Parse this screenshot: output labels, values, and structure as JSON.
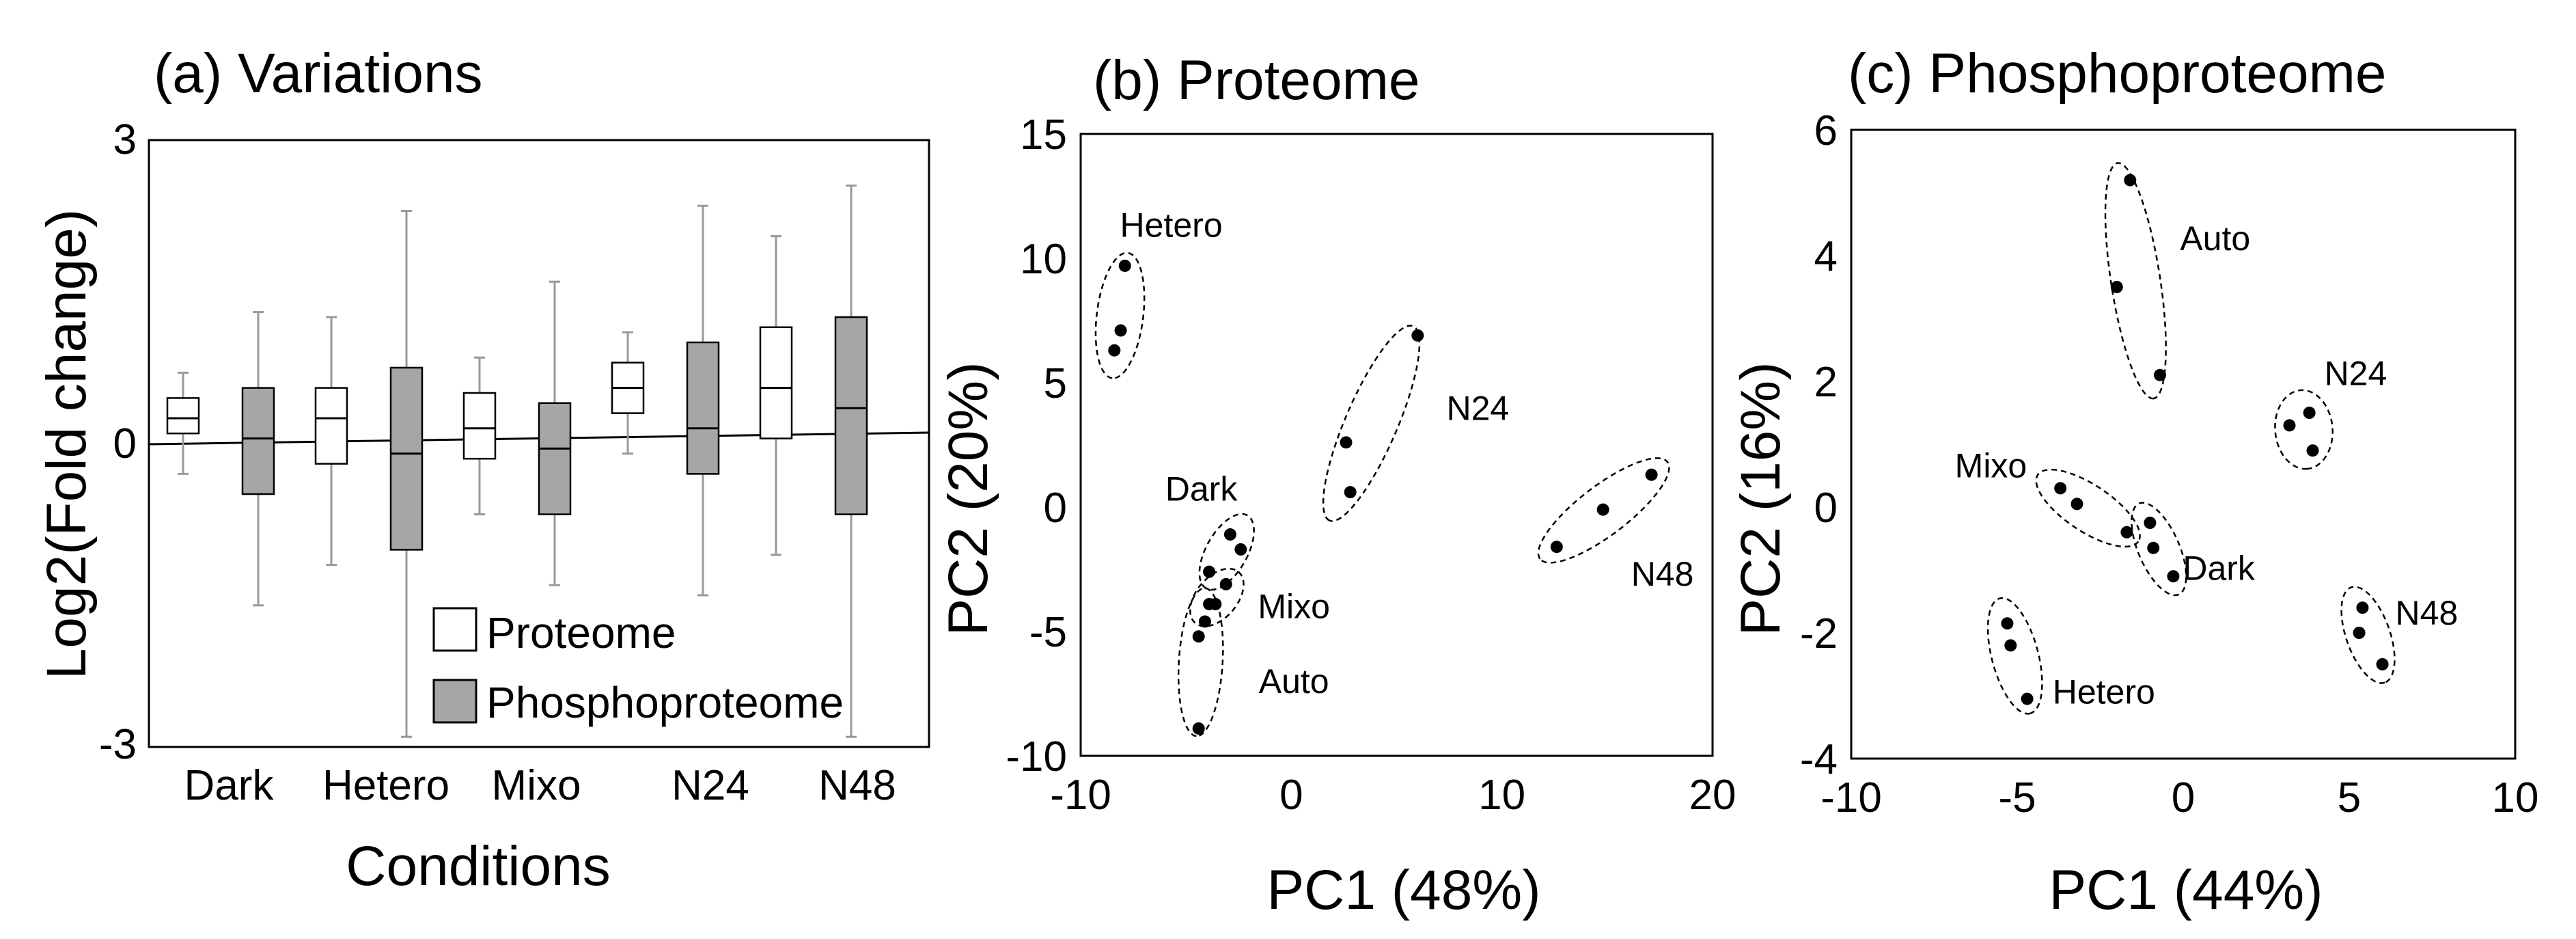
{
  "chart_data": [
    {
      "type": "box",
      "title": "(a) Variations",
      "xlabel": "Conditions",
      "ylabel": "Log2(Fold change)",
      "ylim": [
        -3,
        3
      ],
      "ytick_labels": [
        "3",
        "0",
        "-3"
      ],
      "categories": [
        "Dark",
        "Hetero",
        "Mixo",
        "N24",
        "N48"
      ],
      "legend": {
        "position": "bottom-right",
        "entries": [
          "Proteome",
          "Phosphoproteome"
        ]
      },
      "series": [
        {
          "name": "Proteome",
          "color": "#ffffff",
          "boxes": [
            {
              "min": -0.3,
              "q1": 0.1,
              "median": 0.25,
              "q3": 0.45,
              "max": 0.7
            },
            {
              "min": -1.2,
              "q1": -0.2,
              "median": 0.25,
              "q3": 0.55,
              "max": 1.25
            },
            {
              "min": -0.7,
              "q1": -0.15,
              "median": 0.15,
              "q3": 0.5,
              "max": 0.85
            },
            {
              "min": -0.1,
              "q1": 0.3,
              "median": 0.55,
              "q3": 0.8,
              "max": 1.1
            },
            {
              "min": -1.1,
              "q1": 0.05,
              "median": 0.55,
              "q3": 1.15,
              "max": 2.05
            }
          ]
        },
        {
          "name": "Phosphoproteome",
          "color": "#a6a6a6",
          "boxes": [
            {
              "min": -1.6,
              "q1": -0.5,
              "median": 0.05,
              "q3": 0.55,
              "max": 1.3
            },
            {
              "min": -2.9,
              "q1": -1.05,
              "median": -0.1,
              "q3": 0.75,
              "max": 2.3
            },
            {
              "min": -1.4,
              "q1": -0.7,
              "median": -0.05,
              "q3": 0.4,
              "max": 1.6
            },
            {
              "min": -1.5,
              "q1": -0.3,
              "median": 0.15,
              "q3": 1.0,
              "max": 2.35
            },
            {
              "min": -2.9,
              "q1": -0.7,
              "median": 0.35,
              "q3": 1.25,
              "max": 2.55
            }
          ]
        }
      ]
    },
    {
      "type": "scatter",
      "title": "(b) Proteome",
      "xlabel": "PC1 (48%)",
      "ylabel": "PC2 (20%)",
      "xlim": [
        -10,
        20
      ],
      "ylim": [
        -10,
        15
      ],
      "xticks": [
        -10,
        0,
        10,
        20
      ],
      "yticks": [
        -10,
        -5,
        0,
        5,
        10,
        15
      ],
      "groups": [
        {
          "label": "Hetero",
          "points": [
            [
              -7.9,
              9.7
            ],
            [
              -8.1,
              7.1
            ],
            [
              -8.4,
              6.3
            ]
          ]
        },
        {
          "label": "N24",
          "points": [
            [
              6.0,
              6.9
            ],
            [
              2.6,
              2.6
            ],
            [
              2.8,
              0.6
            ]
          ]
        },
        {
          "label": "N48",
          "points": [
            [
              17.1,
              1.3
            ],
            [
              14.8,
              -0.1
            ],
            [
              12.6,
              -1.6
            ]
          ]
        },
        {
          "label": "Dark",
          "points": [
            [
              -2.9,
              -1.1
            ],
            [
              -2.4,
              -1.7
            ],
            [
              -3.9,
              -2.6
            ]
          ]
        },
        {
          "label": "Mixo",
          "points": [
            [
              -3.9,
              -3.9
            ],
            [
              -3.1,
              -3.1
            ],
            [
              -3.6,
              -3.9
            ]
          ]
        },
        {
          "label": "Auto",
          "points": [
            [
              -4.1,
              -4.6
            ],
            [
              -4.4,
              -5.2
            ],
            [
              -4.4,
              -8.9
            ]
          ]
        }
      ]
    },
    {
      "type": "scatter",
      "title": "(c) Phosphoproteome",
      "xlabel": "PC1 (44%)",
      "ylabel": "PC2 (16%)",
      "xlim": [
        -10,
        10
      ],
      "ylim": [
        -4,
        6
      ],
      "xticks": [
        -10,
        -5,
        0,
        5,
        10
      ],
      "yticks": [
        -4,
        -2,
        0,
        2,
        4,
        6
      ],
      "groups": [
        {
          "label": "Auto",
          "points": [
            [
              -1.6,
              5.2
            ],
            [
              -2.0,
              3.5
            ],
            [
              -0.7,
              2.1
            ]
          ]
        },
        {
          "label": "N24",
          "points": [
            [
              3.2,
              1.3
            ],
            [
              3.8,
              1.5
            ],
            [
              3.9,
              0.9
            ]
          ]
        },
        {
          "label": "Mixo",
          "points": [
            [
              -3.7,
              0.3
            ],
            [
              -3.2,
              0.05
            ],
            [
              -1.7,
              -0.4
            ]
          ]
        },
        {
          "label": "Dark",
          "points": [
            [
              -1.0,
              -0.25
            ],
            [
              -0.9,
              -0.65
            ],
            [
              -0.3,
              -1.1
            ]
          ]
        },
        {
          "label": "N48",
          "points": [
            [
              5.4,
              -1.6
            ],
            [
              5.3,
              -2.0
            ],
            [
              6.0,
              -2.5
            ]
          ]
        },
        {
          "label": "Hetero",
          "points": [
            [
              -5.3,
              -1.85
            ],
            [
              -5.2,
              -2.2
            ],
            [
              -4.7,
              -3.05
            ]
          ]
        }
      ]
    }
  ]
}
